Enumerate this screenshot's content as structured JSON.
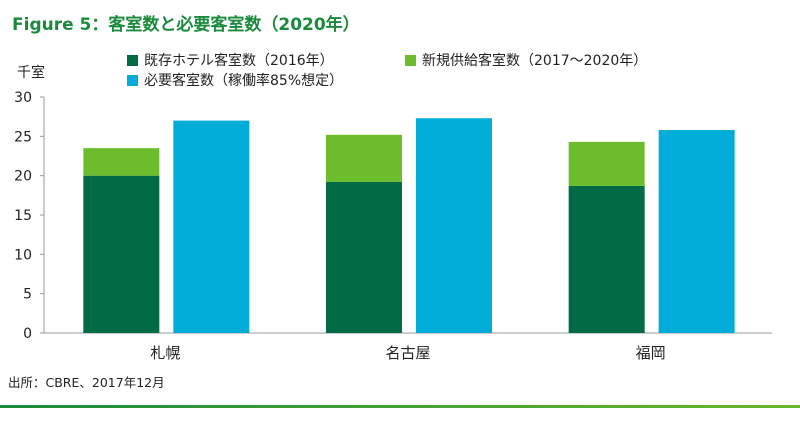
{
  "figure_title": "Figure 5：客室数と必要客室数（2020年）",
  "source_note": "出所：CBRE、2017年12月",
  "chart_data": {
    "type": "bar",
    "stacked": true,
    "ylabel": "千室",
    "ylim": [
      0,
      30
    ],
    "yticks": [
      0,
      5,
      10,
      15,
      20,
      25,
      30
    ],
    "grid": false,
    "legend_position": "top",
    "categories": [
      "札幌",
      "名古屋",
      "福岡"
    ],
    "series": [
      {
        "name": "既存ホテル客室数（2016年）",
        "color": "#006b45",
        "stack": "supply",
        "values": [
          20.0,
          19.2,
          18.7
        ]
      },
      {
        "name": "新規供給客室数（2017～2020年）",
        "color": "#6cbd2c",
        "stack": "supply",
        "values": [
          3.5,
          6.0,
          5.6
        ]
      },
      {
        "name": "必要客室数（稼働率85%想定）",
        "color": "#00add9",
        "stack": "required",
        "values": [
          27.0,
          27.3,
          25.8
        ]
      }
    ]
  }
}
